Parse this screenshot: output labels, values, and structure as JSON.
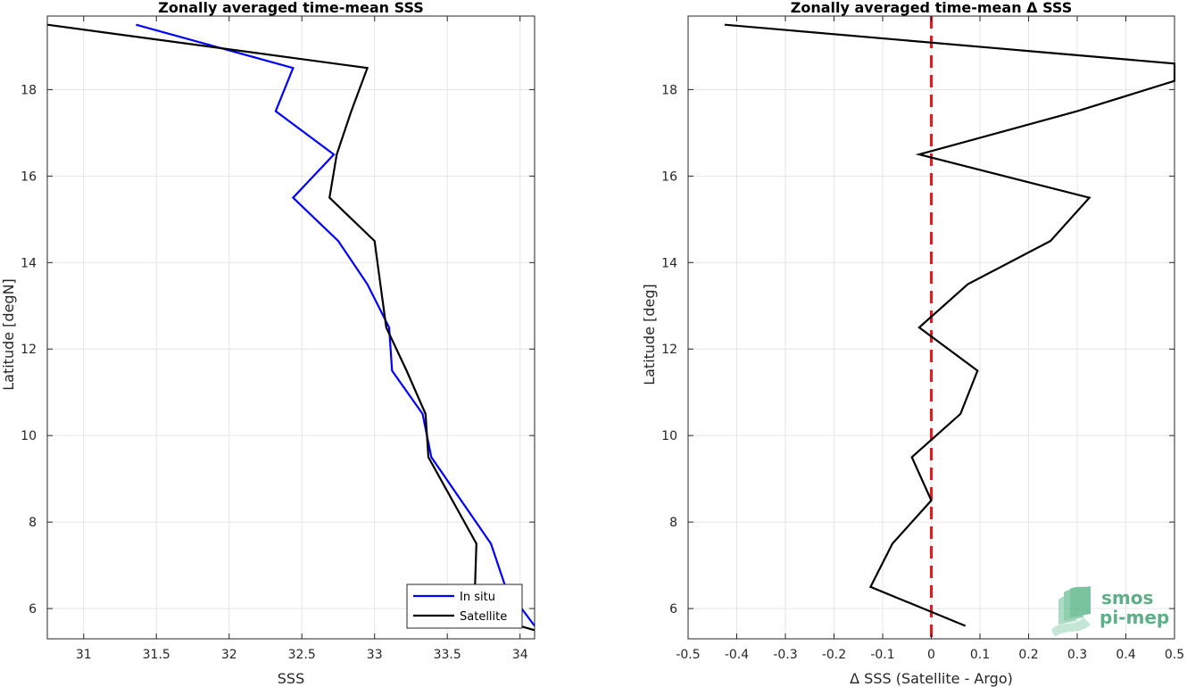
{
  "chart_data": [
    {
      "type": "line",
      "title": "Zonally averaged time-mean SSS",
      "xlabel": "SSS",
      "ylabel": "Latitude [degN]",
      "xlim": [
        30.75,
        34.1
      ],
      "ylim": [
        5.3,
        19.7
      ],
      "xticks": [
        31,
        31.5,
        32,
        32.5,
        33,
        33.5,
        34
      ],
      "xtick_labels": [
        "31",
        "31.5",
        "32",
        "32.5",
        "33",
        "33.5",
        "34"
      ],
      "yticks": [
        6,
        8,
        10,
        12,
        14,
        16,
        18
      ],
      "ytick_labels": [
        "6",
        "8",
        "10",
        "12",
        "14",
        "16",
        "18"
      ],
      "grid": true,
      "legend_position": "bottom-right",
      "series": [
        {
          "name": "In situ",
          "color": "#0000ff",
          "x": [
            31.36,
            32.44,
            32.32,
            32.72,
            32.44,
            32.75,
            32.95,
            33.1,
            33.12,
            33.33,
            33.39,
            33.8,
            33.9,
            34.1
          ],
          "y": [
            19.5,
            18.5,
            17.5,
            16.5,
            15.5,
            14.5,
            13.5,
            12.5,
            11.5,
            10.5,
            9.5,
            7.5,
            6.5,
            5.6
          ]
        },
        {
          "name": "Satellite",
          "color": "#000000",
          "x": [
            30.75,
            32.95,
            32.84,
            32.74,
            32.69,
            33.0,
            33.04,
            33.08,
            33.22,
            33.35,
            33.37,
            33.7,
            33.69,
            33.79,
            34.1
          ],
          "y": [
            19.5,
            18.5,
            17.5,
            16.5,
            15.5,
            14.5,
            13.5,
            12.5,
            11.5,
            10.5,
            9.5,
            7.5,
            6.5,
            5.8,
            5.5
          ]
        }
      ]
    },
    {
      "type": "line",
      "title": "Zonally averaged time-mean Δ SSS",
      "xlabel": "Δ SSS (Satellite - Argo)",
      "ylabel": "Latitude [deg]",
      "xlim": [
        -0.5,
        0.5
      ],
      "ylim": [
        5.3,
        19.7
      ],
      "xticks": [
        -0.5,
        -0.4,
        -0.3,
        -0.2,
        -0.1,
        0,
        0.1,
        0.2,
        0.3,
        0.4,
        0.5
      ],
      "xtick_labels": [
        "-0.5",
        "-0.4",
        "-0.3",
        "-0.2",
        "-0.1",
        "0",
        "0.1",
        "0.2",
        "0.3",
        "0.4",
        "0.5"
      ],
      "yticks": [
        6,
        8,
        10,
        12,
        14,
        16,
        18
      ],
      "ytick_labels": [
        "6",
        "8",
        "10",
        "12",
        "14",
        "16",
        "18"
      ],
      "grid": true,
      "reference_line": {
        "x": 0,
        "color": "#e8191d",
        "style": "dashed"
      },
      "series": [
        {
          "color": "#000000",
          "x": [
            -0.425,
            0.5,
            0.5,
            0.3,
            -0.025,
            0.325,
            0.245,
            0.075,
            -0.025,
            0.095,
            0.06,
            -0.04,
            0,
            -0.08,
            -0.125,
            0.07
          ],
          "y": [
            19.5,
            18.6,
            18.2,
            17.5,
            16.5,
            15.5,
            14.5,
            13.5,
            12.5,
            11.5,
            10.5,
            9.5,
            8.5,
            7.5,
            6.5,
            5.6
          ]
        }
      ]
    }
  ],
  "logo": {
    "line1": "smos",
    "line2": "pi-mep"
  }
}
